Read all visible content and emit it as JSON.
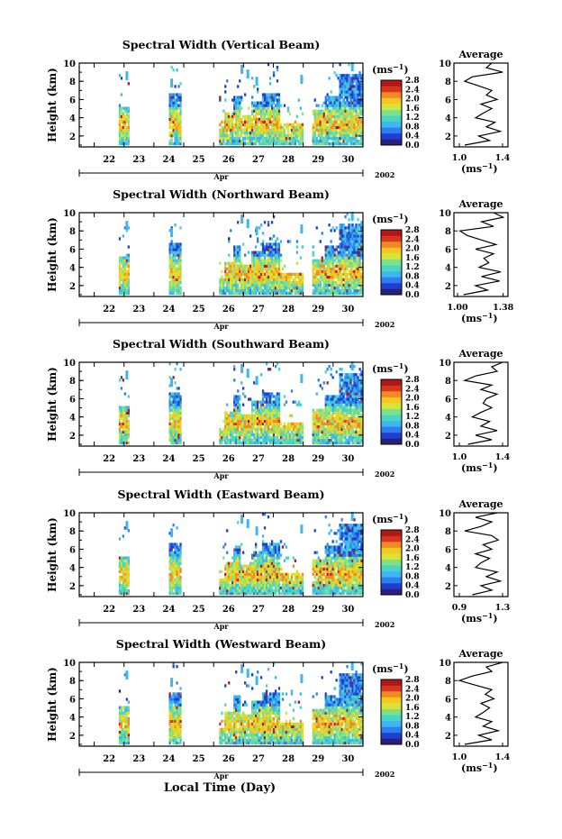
{
  "figure": {
    "xlabel": "Local Time (Day)",
    "month_label": "Apr",
    "year_label": "2002",
    "ylabel": "Height (km)",
    "colorbar_unit": "(ms",
    "colorbar_unit_exp": "−1",
    "colorbar_unit_close": ")",
    "colors": {
      "scale": [
        "#2a1f7a",
        "#1f3fd0",
        "#2f7ff0",
        "#3fb6f2",
        "#49d6c4",
        "#7fe08a",
        "#d6e43a",
        "#f5c81e",
        "#f08a22",
        "#d9341e",
        "#b01818"
      ],
      "profile_line": "#000000",
      "axis": "#000000"
    }
  },
  "chart_data": [
    {
      "type": "heatmap",
      "title": "Spectral Width (Vertical Beam)",
      "xlabel": "Local Time (Day)",
      "ylabel": "Height (km)",
      "x_ticklabels": [
        "22",
        "23",
        "24",
        "25",
        "26",
        "27",
        "28",
        "29",
        "30"
      ],
      "xlim": [
        21.5,
        31.0
      ],
      "y_ticklabels": [
        "2",
        "4",
        "6",
        "8",
        "10"
      ],
      "ylim": [
        0.8,
        10
      ],
      "colorbar_label": "(ms−1)",
      "colorbar_ticklabels": [
        "0.0",
        "0.4",
        "0.8",
        "1.2",
        "1.6",
        "2.0",
        "2.4",
        "2.8"
      ],
      "colorbar_range": [
        0,
        2.8
      ],
      "profile": {
        "title": "Average",
        "xlabel": "(ms−1)",
        "x_ticklabels": [
          "1.0",
          "1.4"
        ],
        "xlim": [
          0.95,
          1.45
        ],
        "y_ticklabels": [
          "2",
          "4",
          "6",
          "8",
          "10"
        ],
        "heights_km": [
          1.0,
          1.5,
          2.0,
          2.5,
          3.0,
          3.5,
          4.0,
          4.5,
          5.0,
          5.5,
          6.0,
          6.5,
          7.0,
          7.5,
          8.0,
          8.5,
          9.0,
          9.5,
          10.0
        ],
        "values": [
          1.05,
          1.28,
          1.18,
          1.38,
          1.25,
          1.33,
          1.15,
          1.22,
          1.3,
          1.2,
          1.35,
          1.25,
          1.3,
          1.18,
          1.05,
          1.12,
          1.4,
          1.25,
          1.3
        ]
      }
    },
    {
      "type": "heatmap",
      "title": "Spectral Width (Northward Beam)",
      "xlabel": "Local Time (Day)",
      "ylabel": "Height (km)",
      "x_ticklabels": [
        "22",
        "23",
        "24",
        "25",
        "26",
        "27",
        "28",
        "29",
        "30"
      ],
      "xlim": [
        21.5,
        31.0
      ],
      "y_ticklabels": [
        "2",
        "4",
        "6",
        "8",
        "10"
      ],
      "ylim": [
        0.8,
        10
      ],
      "colorbar_label": "(ms−1)",
      "colorbar_ticklabels": [
        "0.0",
        "0.4",
        "0.8",
        "1.2",
        "1.6",
        "2.0",
        "2.4",
        "2.8"
      ],
      "colorbar_range": [
        0,
        2.8
      ],
      "profile": {
        "title": "Average",
        "xlabel": "(ms−1)",
        "x_ticklabels": [
          "1.00",
          "1.38"
        ],
        "xlim": [
          0.97,
          1.42
        ],
        "y_ticklabels": [
          "2",
          "4",
          "6",
          "8",
          "10"
        ],
        "heights_km": [
          1.0,
          1.5,
          2.0,
          2.5,
          3.0,
          3.5,
          4.0,
          4.5,
          5.0,
          5.5,
          6.0,
          6.5,
          7.0,
          7.5,
          8.0,
          8.5,
          9.0,
          9.5,
          10.0
        ],
        "values": [
          1.05,
          1.25,
          1.15,
          1.35,
          1.2,
          1.36,
          1.18,
          1.26,
          1.22,
          1.3,
          1.15,
          1.32,
          1.2,
          1.08,
          1.02,
          1.3,
          1.2,
          1.38,
          1.3
        ]
      }
    },
    {
      "type": "heatmap",
      "title": "Spectral Width (Southward Beam)",
      "xlabel": "Local Time (Day)",
      "ylabel": "Height (km)",
      "x_ticklabels": [
        "22",
        "23",
        "24",
        "25",
        "26",
        "27",
        "28",
        "29",
        "30"
      ],
      "xlim": [
        21.5,
        31.0
      ],
      "y_ticklabels": [
        "2",
        "4",
        "6",
        "8",
        "10"
      ],
      "ylim": [
        0.8,
        10
      ],
      "colorbar_label": "(ms−1)",
      "colorbar_ticklabels": [
        "0.0",
        "0.4",
        "0.8",
        "1.2",
        "1.6",
        "2.0",
        "2.4",
        "2.8"
      ],
      "colorbar_range": [
        0,
        2.8
      ],
      "profile": {
        "title": "Average",
        "xlabel": "(ms−1)",
        "x_ticklabels": [
          "1.0",
          "1.4"
        ],
        "xlim": [
          0.95,
          1.45
        ],
        "y_ticklabels": [
          "2",
          "4",
          "6",
          "8",
          "10"
        ],
        "heights_km": [
          1.0,
          1.5,
          2.0,
          2.5,
          3.0,
          3.5,
          4.0,
          4.5,
          5.0,
          5.5,
          6.0,
          6.5,
          7.0,
          7.5,
          8.0,
          8.5,
          9.0,
          9.5,
          10.0
        ],
        "values": [
          1.08,
          1.3,
          1.15,
          1.35,
          1.2,
          1.28,
          1.12,
          1.2,
          1.3,
          1.22,
          1.25,
          1.35,
          1.2,
          1.3,
          1.05,
          1.15,
          1.35,
          1.3,
          1.4
        ]
      }
    },
    {
      "type": "heatmap",
      "title": "Spectral Width (Eastward Beam)",
      "xlabel": "Local Time (Day)",
      "ylabel": "Height (km)",
      "x_ticklabels": [
        "22",
        "23",
        "24",
        "25",
        "26",
        "27",
        "28",
        "29",
        "30"
      ],
      "xlim": [
        21.5,
        31.0
      ],
      "y_ticklabels": [
        "2",
        "4",
        "6",
        "8",
        "10"
      ],
      "ylim": [
        0.8,
        10
      ],
      "colorbar_label": "(ms−1)",
      "colorbar_ticklabels": [
        "0.0",
        "0.4",
        "0.8",
        "1.2",
        "1.6",
        "2.0",
        "2.4",
        "2.8"
      ],
      "colorbar_range": [
        0,
        2.8
      ],
      "profile": {
        "title": "Average",
        "xlabel": "(ms−1)",
        "x_ticklabels": [
          "0.9",
          "1.3"
        ],
        "xlim": [
          0.85,
          1.35
        ],
        "y_ticklabels": [
          "2",
          "4",
          "6",
          "8",
          "10"
        ],
        "heights_km": [
          1.0,
          1.5,
          2.0,
          2.5,
          3.0,
          3.5,
          4.0,
          4.5,
          5.0,
          5.5,
          6.0,
          6.5,
          7.0,
          7.5,
          8.0,
          8.5,
          9.0,
          9.5,
          10.0
        ],
        "values": [
          1.02,
          1.2,
          1.1,
          1.28,
          1.15,
          1.25,
          1.05,
          1.1,
          1.18,
          1.05,
          1.2,
          1.12,
          1.26,
          1.2,
          0.95,
          1.1,
          1.2,
          1.05,
          1.25
        ]
      }
    },
    {
      "type": "heatmap",
      "title": "Spectral Width (Westward Beam)",
      "xlabel": "Local Time (Day)",
      "ylabel": "Height (km)",
      "x_ticklabels": [
        "22",
        "23",
        "24",
        "25",
        "26",
        "27",
        "28",
        "29",
        "30"
      ],
      "xlim": [
        21.5,
        31.0
      ],
      "y_ticklabels": [
        "2",
        "4",
        "6",
        "8",
        "10"
      ],
      "ylim": [
        0.8,
        10
      ],
      "colorbar_label": "(ms−1)",
      "colorbar_ticklabels": [
        "0.0",
        "0.4",
        "0.8",
        "1.2",
        "1.6",
        "2.0",
        "2.4",
        "2.8"
      ],
      "colorbar_range": [
        0,
        2.8
      ],
      "profile": {
        "title": "Average",
        "xlabel": "(ms−1)",
        "x_ticklabels": [
          "1.0",
          "1.4"
        ],
        "xlim": [
          0.95,
          1.45
        ],
        "y_ticklabels": [
          "2",
          "4",
          "6",
          "8",
          "10"
        ],
        "heights_km": [
          1.0,
          1.5,
          2.0,
          2.5,
          3.0,
          3.5,
          4.0,
          4.5,
          5.0,
          5.5,
          6.0,
          6.5,
          7.0,
          7.5,
          8.0,
          8.5,
          9.0,
          9.5,
          10.0
        ],
        "values": [
          1.05,
          1.3,
          1.18,
          1.36,
          1.22,
          1.3,
          1.15,
          1.22,
          1.28,
          1.2,
          1.32,
          1.24,
          1.3,
          1.15,
          1.0,
          1.12,
          1.3,
          1.25,
          1.4
        ]
      }
    }
  ]
}
